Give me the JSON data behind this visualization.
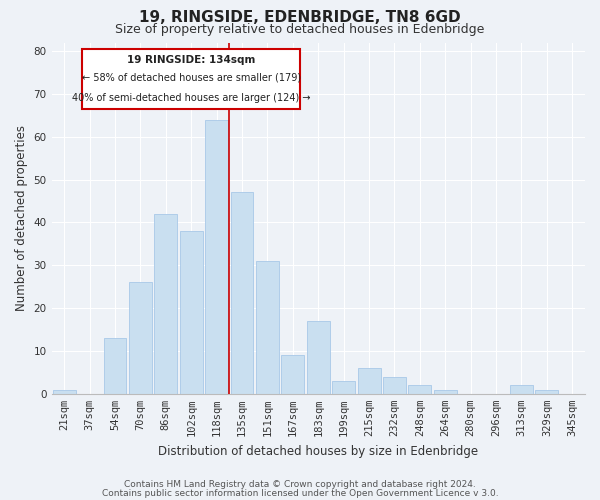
{
  "title": "19, RINGSIDE, EDENBRIDGE, TN8 6GD",
  "subtitle": "Size of property relative to detached houses in Edenbridge",
  "xlabel": "Distribution of detached houses by size in Edenbridge",
  "ylabel": "Number of detached properties",
  "bar_labels": [
    "21sqm",
    "37sqm",
    "54sqm",
    "70sqm",
    "86sqm",
    "102sqm",
    "118sqm",
    "135sqm",
    "151sqm",
    "167sqm",
    "183sqm",
    "199sqm",
    "215sqm",
    "232sqm",
    "248sqm",
    "264sqm",
    "280sqm",
    "296sqm",
    "313sqm",
    "329sqm",
    "345sqm"
  ],
  "bar_values": [
    1,
    0,
    13,
    26,
    42,
    38,
    64,
    47,
    31,
    9,
    17,
    3,
    6,
    4,
    2,
    1,
    0,
    0,
    2,
    1,
    0
  ],
  "bar_color": "#c9dff0",
  "bar_edge_color": "#a8c8e8",
  "marker_index": 7,
  "marker_line_color": "#cc0000",
  "ylim": [
    0,
    82
  ],
  "yticks": [
    0,
    10,
    20,
    30,
    40,
    50,
    60,
    70,
    80
  ],
  "annotation_title": "19 RINGSIDE: 134sqm",
  "annotation_line1": "← 58% of detached houses are smaller (179)",
  "annotation_line2": "40% of semi-detached houses are larger (124) →",
  "annotation_box_color": "#ffffff",
  "annotation_box_edge": "#cc0000",
  "footer1": "Contains HM Land Registry data © Crown copyright and database right 2024.",
  "footer2": "Contains public sector information licensed under the Open Government Licence v 3.0.",
  "background_color": "#eef2f7",
  "grid_color": "#ffffff",
  "title_fontsize": 11,
  "subtitle_fontsize": 9,
  "axis_label_fontsize": 8.5,
  "tick_fontsize": 7.5,
  "footer_fontsize": 6.5
}
